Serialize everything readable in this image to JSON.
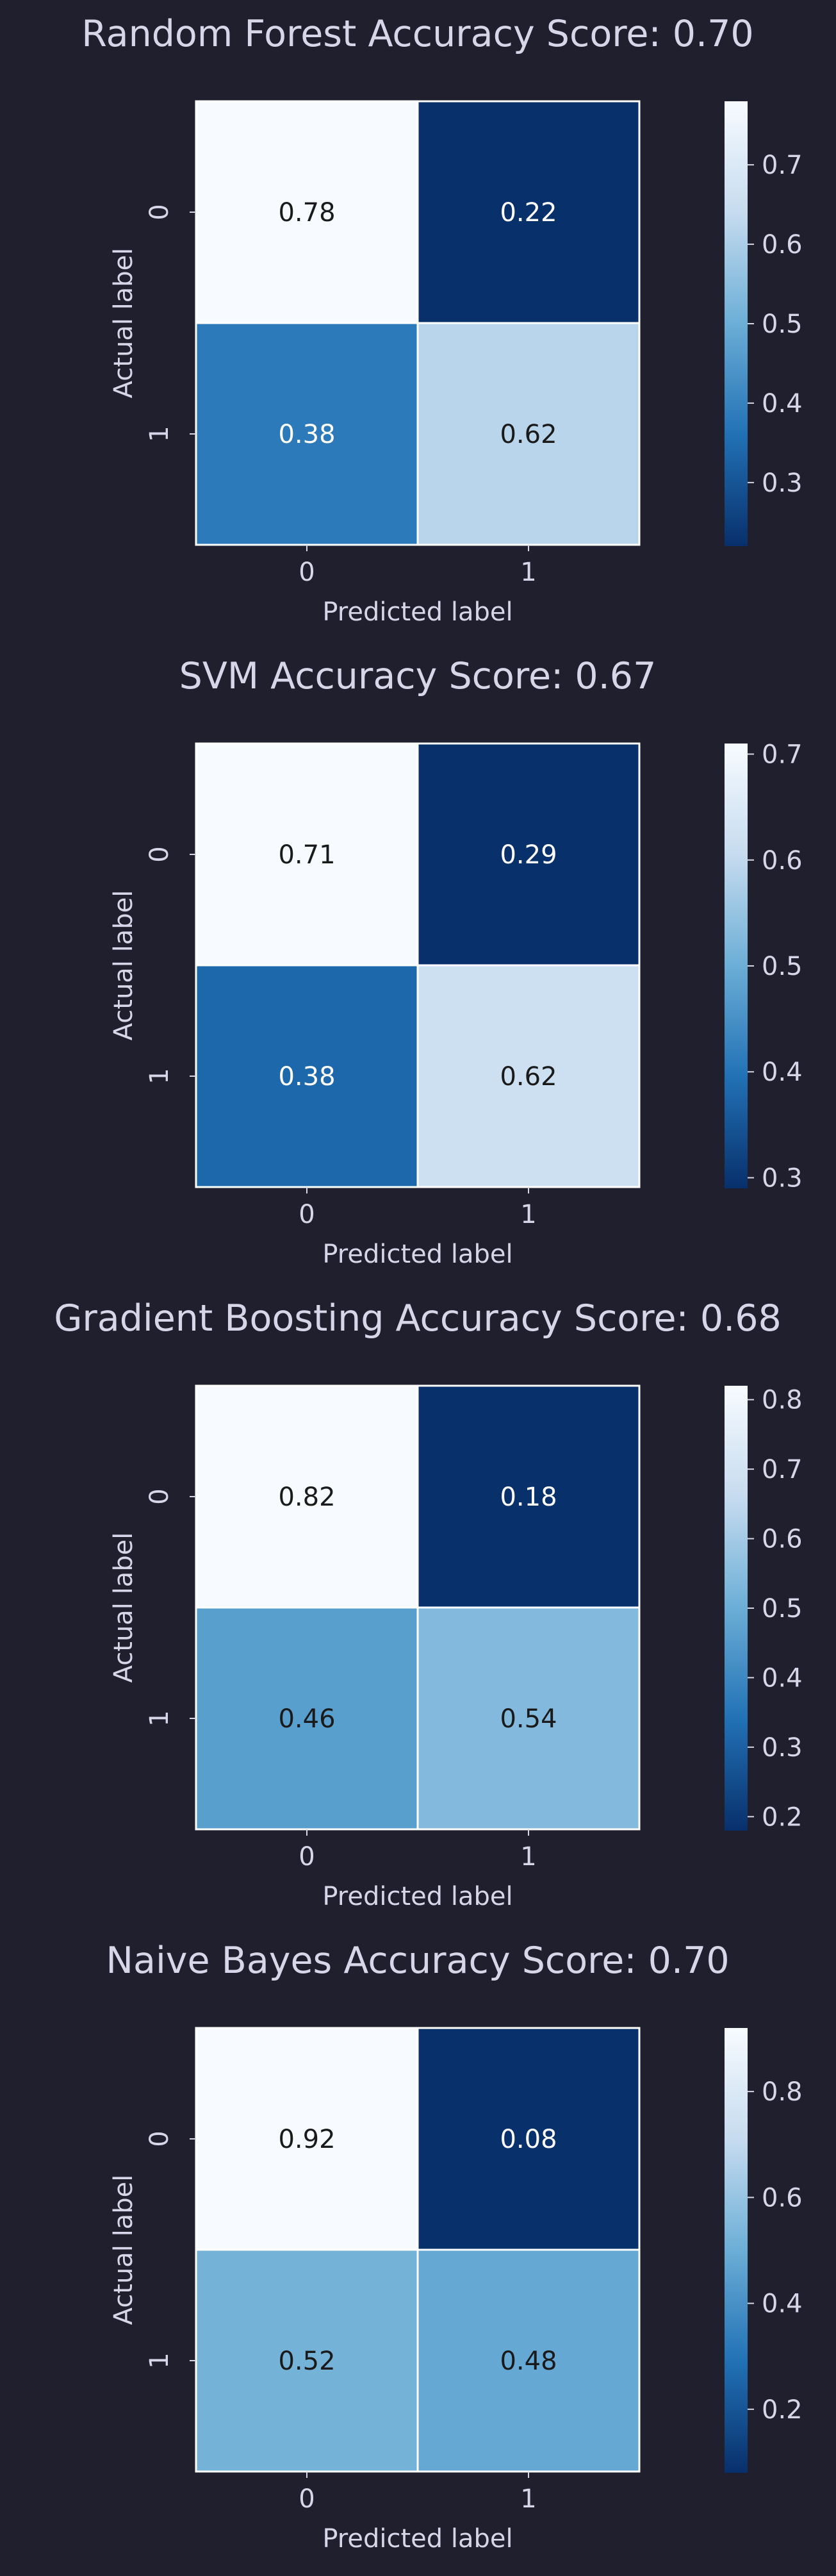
{
  "colors": {
    "background": "#1f1f2e",
    "text": "#d6d6e8",
    "colormap": [
      "#08306b",
      "#2171b5",
      "#6baed6",
      "#c6dbef",
      "#f7fbff"
    ],
    "cell_border": "#ffffff",
    "label_dark": "#1a1a1a",
    "label_light": "#ffffff"
  },
  "chart_data": [
    {
      "type": "heatmap",
      "title": "Random Forest Accuracy Score: 0.70",
      "xlabel": "Predicted label",
      "ylabel": "Actual label",
      "x_categories": [
        "0",
        "1"
      ],
      "y_categories": [
        "0",
        "1"
      ],
      "values": [
        [
          0.78,
          0.22
        ],
        [
          0.38,
          0.62
        ]
      ],
      "value_labels": [
        [
          "0.78",
          "0.22"
        ],
        [
          "0.38",
          "0.62"
        ]
      ],
      "colorbar_range": [
        0.22,
        0.78
      ],
      "colorbar_ticks": [
        0.3,
        0.4,
        0.5,
        0.6,
        0.7
      ],
      "colorbar_tick_labels": [
        "0.3",
        "0.4",
        "0.5",
        "0.6",
        "0.7"
      ],
      "cmap": "Blues_r",
      "grid": false
    },
    {
      "type": "heatmap",
      "title": "SVM Accuracy Score: 0.67",
      "xlabel": "Predicted label",
      "ylabel": "Actual label",
      "x_categories": [
        "0",
        "1"
      ],
      "y_categories": [
        "0",
        "1"
      ],
      "values": [
        [
          0.71,
          0.29
        ],
        [
          0.38,
          0.62
        ]
      ],
      "value_labels": [
        [
          "0.71",
          "0.29"
        ],
        [
          "0.38",
          "0.62"
        ]
      ],
      "colorbar_range": [
        0.29,
        0.71
      ],
      "colorbar_ticks": [
        0.3,
        0.4,
        0.5,
        0.6,
        0.7
      ],
      "colorbar_tick_labels": [
        "0.3",
        "0.4",
        "0.5",
        "0.6",
        "0.7"
      ],
      "cmap": "Blues_r",
      "grid": false
    },
    {
      "type": "heatmap",
      "title": "Gradient Boosting Accuracy Score: 0.68",
      "xlabel": "Predicted label",
      "ylabel": "Actual label",
      "x_categories": [
        "0",
        "1"
      ],
      "y_categories": [
        "0",
        "1"
      ],
      "values": [
        [
          0.82,
          0.18
        ],
        [
          0.46,
          0.54
        ]
      ],
      "value_labels": [
        [
          "0.82",
          "0.18"
        ],
        [
          "0.46",
          "0.54"
        ]
      ],
      "colorbar_range": [
        0.18,
        0.82
      ],
      "colorbar_ticks": [
        0.2,
        0.3,
        0.4,
        0.5,
        0.6,
        0.7,
        0.8
      ],
      "colorbar_tick_labels": [
        "0.2",
        "0.3",
        "0.4",
        "0.5",
        "0.6",
        "0.7",
        "0.8"
      ],
      "cmap": "Blues_r",
      "grid": false
    },
    {
      "type": "heatmap",
      "title": "Naive Bayes Accuracy Score: 0.70",
      "xlabel": "Predicted label",
      "ylabel": "Actual label",
      "x_categories": [
        "0",
        "1"
      ],
      "y_categories": [
        "0",
        "1"
      ],
      "values": [
        [
          0.92,
          0.08
        ],
        [
          0.52,
          0.48
        ]
      ],
      "value_labels": [
        [
          "0.92",
          "0.08"
        ],
        [
          "0.52",
          "0.48"
        ]
      ],
      "colorbar_range": [
        0.08,
        0.92
      ],
      "colorbar_ticks": [
        0.2,
        0.4,
        0.6,
        0.8
      ],
      "colorbar_tick_labels": [
        "0.2",
        "0.4",
        "0.6",
        "0.8"
      ],
      "cmap": "Blues_r",
      "grid": false
    }
  ]
}
